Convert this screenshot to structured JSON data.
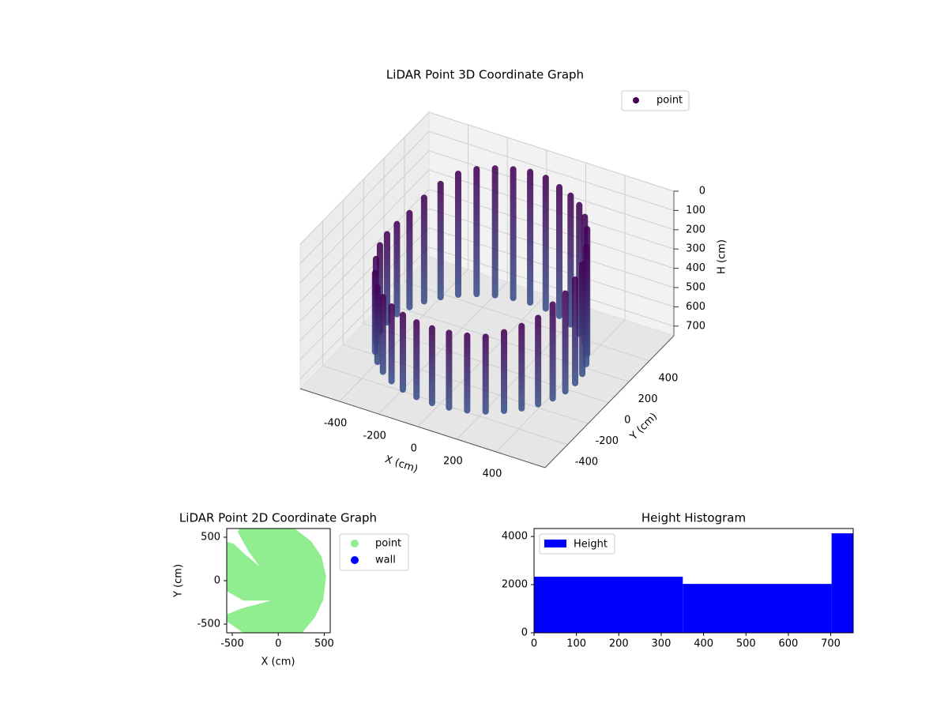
{
  "chart_data": [
    {
      "type": "scatter3d",
      "title": "LiDAR Point 3D Coordinate Graph",
      "xlabel": "X (cm)",
      "ylabel": "Y (cm)",
      "zlabel": "H (cm)",
      "xlim": [
        -600,
        650
      ],
      "ylim": [
        -620,
        640
      ],
      "zlim": [
        750,
        0
      ],
      "xticks": [
        -400,
        -200,
        0,
        200,
        400
      ],
      "yticks": [
        -400,
        -200,
        0,
        200,
        400
      ],
      "zticks": [
        0,
        100,
        200,
        300,
        400,
        500,
        600,
        700
      ],
      "grid": true,
      "legend": "upper right",
      "colors": [
        "#440154",
        "#3b528b"
      ],
      "series": [
        {
          "name": "point",
          "color": "#440154",
          "x": [
            480,
            473,
            451,
            416,
            368,
            309,
            240,
            164,
            83,
            0,
            -83,
            -164,
            -240,
            -309,
            -368,
            -416,
            -451,
            -473,
            -480,
            -473,
            -451,
            -416,
            -368,
            -309,
            -240,
            -164,
            -83,
            0,
            83,
            164,
            240,
            309,
            368,
            416,
            451,
            473
          ],
          "y": [
            0,
            83,
            164,
            240,
            309,
            368,
            416,
            451,
            473,
            480,
            473,
            451,
            416,
            368,
            309,
            240,
            164,
            83,
            0,
            -83,
            -164,
            -240,
            -309,
            -368,
            -416,
            -451,
            -473,
            -480,
            -473,
            -451,
            -416,
            -368,
            -309,
            -240,
            -164,
            -83
          ],
          "h_top": [
            150,
            120,
            80,
            40,
            30,
            20,
            20,
            20,
            10,
            10,
            20,
            30,
            40,
            60,
            100,
            150,
            200,
            220,
            230,
            240,
            260,
            280,
            300,
            300,
            300,
            300,
            300,
            300,
            300,
            300,
            300,
            280,
            260,
            240,
            200,
            180
          ],
          "h_bottom": [
            720,
            720,
            720,
            720,
            720,
            720,
            720,
            720,
            720,
            720,
            720,
            720,
            720,
            720,
            720,
            720,
            720,
            720,
            720,
            720,
            720,
            720,
            720,
            720,
            720,
            720,
            720,
            720,
            720,
            720,
            720,
            720,
            720,
            720,
            720,
            720
          ]
        }
      ]
    },
    {
      "type": "scatter",
      "title": "LiDAR Point 2D Coordinate Graph",
      "xlabel": "X (cm)",
      "ylabel": "Y (cm)",
      "xlim": [
        -560,
        565
      ],
      "ylim": [
        -600,
        600
      ],
      "xticks": [
        -500,
        0,
        500
      ],
      "yticks": [
        -500,
        0,
        500
      ],
      "legend": "outside right",
      "series": [
        {
          "name": "point",
          "color": "#90ee90",
          "x": [
            -420,
            180,
            360,
            470,
            520,
            490,
            400,
            260,
            -380,
            -560,
            -560,
            -400,
            -80,
            -380,
            -560,
            -560,
            -480,
            -380,
            -200,
            -320,
            -440
          ],
          "y": [
            600,
            600,
            450,
            280,
            50,
            -220,
            -420,
            -600,
            -600,
            -470,
            -390,
            -320,
            -230,
            -230,
            -120,
            450,
            420,
            320,
            160,
            330,
            560
          ]
        },
        {
          "name": "wall",
          "color": "#0000ff",
          "x": [],
          "y": []
        }
      ]
    },
    {
      "type": "histogram",
      "title": "Height Histogram",
      "bins": [
        0,
        351,
        702,
        753
      ],
      "counts": [
        2330,
        2030,
        4130
      ],
      "xlim": [
        0,
        753
      ],
      "ylim": [
        0,
        4330
      ],
      "xticks": [
        0,
        100,
        200,
        300,
        400,
        500,
        600,
        700
      ],
      "yticks": [
        0,
        2000,
        4000
      ],
      "legend": "upper left",
      "series_name": "Height",
      "color": "#0000ff"
    }
  ]
}
